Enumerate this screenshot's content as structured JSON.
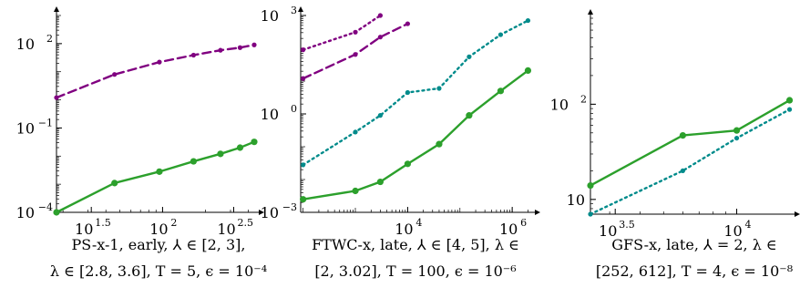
{
  "colors": {
    "green": "#2ca02c",
    "purple": "#800080",
    "teal": "#008b8b",
    "axis": "#000000"
  },
  "chart_data": [
    {
      "type": "line",
      "x_scale": "log",
      "y_scale": "log",
      "xlim": [
        18,
        460
      ],
      "ylim": [
        0.0001,
        1000
      ],
      "x_ticks": [
        {
          "value": 31.6,
          "base": "10",
          "exp": "1.5"
        },
        {
          "value": 100,
          "base": "10",
          "exp": "2"
        },
        {
          "value": 316,
          "base": "10",
          "exp": "2.5"
        }
      ],
      "y_ticks": [
        {
          "value": 0.0001,
          "base": "10",
          "exp": "−4"
        },
        {
          "value": 0.1,
          "base": "10",
          "exp": "−1"
        },
        {
          "value": 100,
          "base": "10",
          "exp": "2"
        }
      ],
      "caption": [
        "PS-x-1, early, ⅄ ∈ [2, 3],",
        "λ ∈ [2.8, 3.6], T = 5, ϵ = 10⁻⁴"
      ],
      "series": [
        {
          "color": "green",
          "style": "solid",
          "marker": "circle",
          "x": [
            18,
            46,
            95,
            165,
            255,
            350,
            440
          ],
          "y": [
            0.0001,
            0.0011,
            0.0028,
            0.0065,
            0.012,
            0.02,
            0.032
          ]
        },
        {
          "color": "purple",
          "style": "dashed",
          "marker": "circle",
          "x": [
            18,
            46,
            95,
            165,
            255,
            350,
            440
          ],
          "y": [
            1.2,
            8,
            22,
            39,
            58,
            72,
            90
          ]
        }
      ]
    },
    {
      "type": "line",
      "x_scale": "log",
      "y_scale": "log",
      "xlim": [
        90,
        2500000
      ],
      "ylim": [
        0.001,
        1000
      ],
      "x_ticks": [
        {
          "value": 10000,
          "base": "10",
          "exp": "4"
        },
        {
          "value": 1000000,
          "base": "10",
          "exp": "6"
        }
      ],
      "y_ticks": [
        {
          "value": 0.001,
          "base": "10",
          "exp": "−3"
        },
        {
          "value": 1,
          "base": "10",
          "exp": "0"
        },
        {
          "value": 1000,
          "base": "10",
          "exp": "3"
        }
      ],
      "caption": [
        "FTWC-x, late, ⅄ ∈ [4, 5], λ ∈",
        "[2, 3.02], T = 100, ϵ = 10⁻⁶"
      ],
      "series": [
        {
          "color": "green",
          "style": "solid",
          "marker": "circle",
          "x": [
            100,
            1000,
            3000,
            10000,
            40000,
            150000,
            600000,
            2000000
          ],
          "y": [
            0.0025,
            0.0045,
            0.0085,
            0.03,
            0.12,
            0.9,
            5,
            21
          ]
        },
        {
          "color": "purple",
          "style": "dashed",
          "marker": "circle",
          "x": [
            100,
            1000,
            3000,
            10000
          ],
          "y": [
            12,
            65,
            220,
            560
          ]
        },
        {
          "color": "purple",
          "style": "dotted",
          "marker": "circle",
          "x": [
            100,
            1000,
            3000
          ],
          "y": [
            90,
            310,
            1000
          ]
        },
        {
          "color": "teal",
          "style": "dotted",
          "marker": "circle",
          "x": [
            100,
            1000,
            3000,
            10000,
            40000,
            150000,
            600000,
            2000000
          ],
          "y": [
            0.028,
            0.28,
            0.9,
            4.5,
            6,
            55,
            260,
            700
          ]
        }
      ]
    },
    {
      "type": "line",
      "x_scale": "log",
      "y_scale": "log",
      "xlim": [
        2500,
        17000
      ],
      "ylim": [
        7,
        800
      ],
      "x_ticks": [
        {
          "value": 3162,
          "base": "10",
          "exp": "3.5"
        },
        {
          "value": 10000,
          "base": "10",
          "exp": "4"
        }
      ],
      "y_ticks": [
        {
          "value": 10,
          "base": "10",
          "exp": ""
        },
        {
          "value": 100,
          "base": "10",
          "exp": "2"
        }
      ],
      "caption": [
        "GFS-x, late, ⅄ = 2, λ ∈",
        "[252, 612], T = 4, ϵ = 10⁻⁸"
      ],
      "series": [
        {
          "color": "green",
          "style": "solid",
          "marker": "circle",
          "x": [
            2500,
            6000,
            10000,
            16500
          ],
          "y": [
            14,
            47,
            53,
            110
          ]
        },
        {
          "color": "teal",
          "style": "dotted",
          "marker": "circle",
          "x": [
            2500,
            6000,
            10000,
            16500
          ],
          "y": [
            7,
            20,
            44,
            88
          ]
        }
      ]
    }
  ]
}
